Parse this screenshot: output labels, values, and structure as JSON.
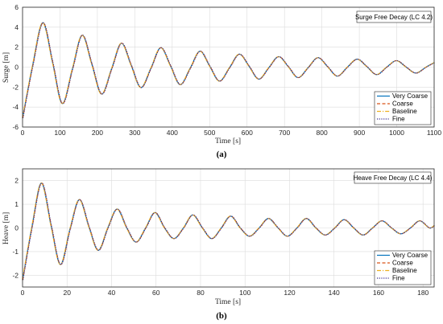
{
  "chart_data": [
    {
      "id": "a",
      "type": "line",
      "caption": "(a)",
      "title": "Surge Free Decay (LC 4.2)",
      "xlabel": "Time [s]",
      "ylabel": "Surge [m]",
      "xlim": [
        0,
        1100
      ],
      "ylim": [
        -6,
        6
      ],
      "xticks": [
        0,
        100,
        200,
        300,
        400,
        500,
        600,
        700,
        800,
        900,
        1000,
        1100
      ],
      "yticks": [
        -6,
        -4,
        -2,
        0,
        2,
        4,
        6
      ],
      "grid": true,
      "legend_position": "bottom-right",
      "series": [
        {
          "name": "Very Coarse",
          "color": "#0072BD",
          "dash": "solid"
        },
        {
          "name": "Coarse",
          "color": "#D95319",
          "dash": "dashed"
        },
        {
          "name": "Baseline",
          "color": "#EDB120",
          "dash": "dashdot"
        },
        {
          "name": "Fine",
          "color": "#3b2f8f",
          "dash": "dotted"
        }
      ],
      "x": [
        0,
        27,
        54,
        80,
        106,
        133,
        159,
        185,
        211,
        238,
        264,
        290,
        316,
        343,
        369,
        395,
        421,
        448,
        474,
        500,
        526,
        553,
        579,
        605,
        631,
        658,
        684,
        710,
        736,
        763,
        789,
        815,
        841,
        868,
        894,
        920,
        946,
        973,
        999,
        1025,
        1051,
        1078,
        1100
      ],
      "y": [
        -5.1,
        0.2,
        4.45,
        0.5,
        -3.65,
        -0.2,
        3.2,
        0.3,
        -2.7,
        -0.15,
        2.4,
        0.2,
        -2.05,
        -0.1,
        1.95,
        0.15,
        -1.75,
        -0.1,
        1.6,
        0.1,
        -1.4,
        -0.05,
        1.3,
        0.1,
        -1.2,
        -0.05,
        1.05,
        0.05,
        -1.05,
        -0.05,
        0.95,
        0.05,
        -0.9,
        0.0,
        0.8,
        0.05,
        -0.75,
        0.0,
        0.65,
        0.0,
        -0.6,
        0.0,
        0.45
      ]
    },
    {
      "id": "b",
      "type": "line",
      "caption": "(b)",
      "title": "Heave Free Decay (LC 4.4)",
      "xlabel": "Time [s]",
      "ylabel": "Heave [m]",
      "xlim": [
        0,
        185
      ],
      "ylim": [
        -2.5,
        2.5
      ],
      "xticks": [
        0,
        20,
        40,
        60,
        80,
        100,
        120,
        140,
        160,
        180
      ],
      "yticks": [
        -2,
        -1,
        0,
        1,
        2
      ],
      "grid": true,
      "legend_position": "bottom-right",
      "series": [
        {
          "name": "Very Coarse",
          "color": "#0072BD",
          "dash": "solid"
        },
        {
          "name": "Coarse",
          "color": "#D95319",
          "dash": "dashed"
        },
        {
          "name": "Baseline",
          "color": "#EDB120",
          "dash": "dashdot"
        },
        {
          "name": "Fine",
          "color": "#3b2f8f",
          "dash": "dotted"
        }
      ],
      "x": [
        0,
        4.3,
        8.5,
        12.8,
        17,
        21.3,
        25.5,
        29.8,
        34,
        38.3,
        42.5,
        46.8,
        51,
        55.3,
        59.5,
        63.8,
        68,
        72.3,
        76.5,
        80.8,
        85,
        89.3,
        93.5,
        97.8,
        102,
        106.3,
        110.5,
        114.8,
        119,
        123.3,
        127.5,
        131.8,
        136,
        140.3,
        144.5,
        148.8,
        153,
        157.3,
        161.5,
        165.8,
        170,
        174.3,
        178.5,
        182.8,
        185
      ],
      "y": [
        -2.2,
        0.1,
        1.9,
        0.1,
        -1.55,
        -0.05,
        1.2,
        0.05,
        -0.95,
        0.0,
        0.8,
        0.0,
        -0.6,
        0.0,
        0.65,
        0.0,
        -0.45,
        0.0,
        0.55,
        0.0,
        -0.45,
        0.0,
        0.5,
        0.0,
        -0.35,
        0.0,
        0.4,
        0.0,
        -0.35,
        0.0,
        0.4,
        0.0,
        -0.3,
        0.0,
        0.35,
        0.0,
        -0.3,
        0.0,
        0.3,
        0.0,
        -0.25,
        0.0,
        0.3,
        0.0,
        0.1
      ]
    }
  ]
}
